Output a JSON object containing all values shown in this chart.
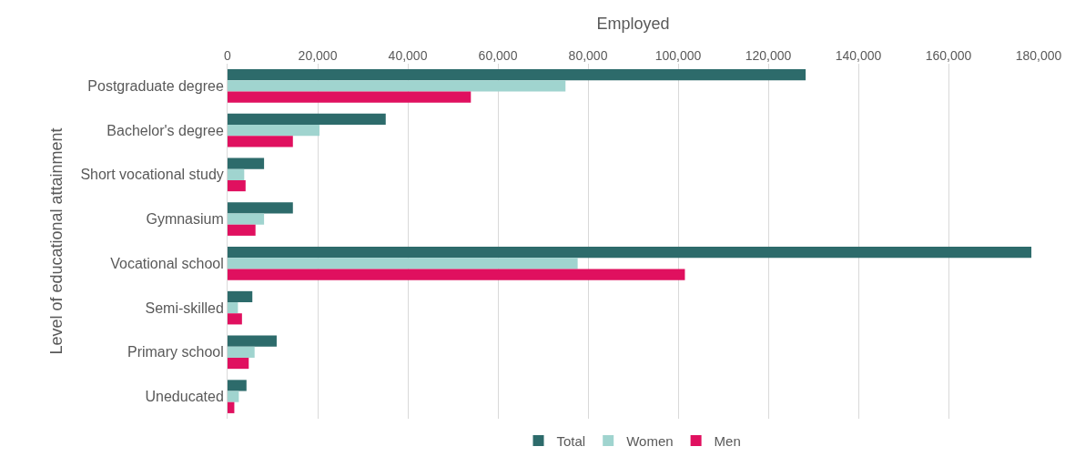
{
  "chart_data": {
    "type": "bar",
    "orientation": "horizontal",
    "xlabel": "Employed",
    "ylabel": "Level of educational attainment",
    "categories": [
      "Postgraduate degree",
      "Bachelor's degree",
      "Short vocational study",
      "Gymnasium",
      "Vocational school",
      "Semi-skilled",
      "Primary school",
      "Uneducated"
    ],
    "series": [
      {
        "name": "Total",
        "color": "#2d6b6b",
        "values": [
          128300,
          35100,
          8100,
          14500,
          178400,
          5500,
          10900,
          4200
        ]
      },
      {
        "name": "Women",
        "color": "#a0d4cf",
        "values": [
          75000,
          20400,
          3700,
          8100,
          77700,
          2300,
          6000,
          2500
        ]
      },
      {
        "name": "Men",
        "color": "#e0105f",
        "values": [
          54000,
          14500,
          4000,
          6200,
          101500,
          3200,
          4700,
          1500
        ]
      }
    ],
    "xlim": [
      0,
      180000
    ],
    "xticks": [
      {
        "value": 0,
        "label": "0"
      },
      {
        "value": 20000,
        "label": "20,000"
      },
      {
        "value": 40000,
        "label": "40,000"
      },
      {
        "value": 60000,
        "label": "60,000"
      },
      {
        "value": 80000,
        "label": "80,000"
      },
      {
        "value": 100000,
        "label": "100,000"
      },
      {
        "value": 120000,
        "label": "120,000"
      },
      {
        "value": 140000,
        "label": "140,000"
      },
      {
        "value": 160000,
        "label": "160,000"
      },
      {
        "value": 180000,
        "label": "180,000"
      }
    ],
    "grid": "x",
    "legend": "bottom"
  }
}
